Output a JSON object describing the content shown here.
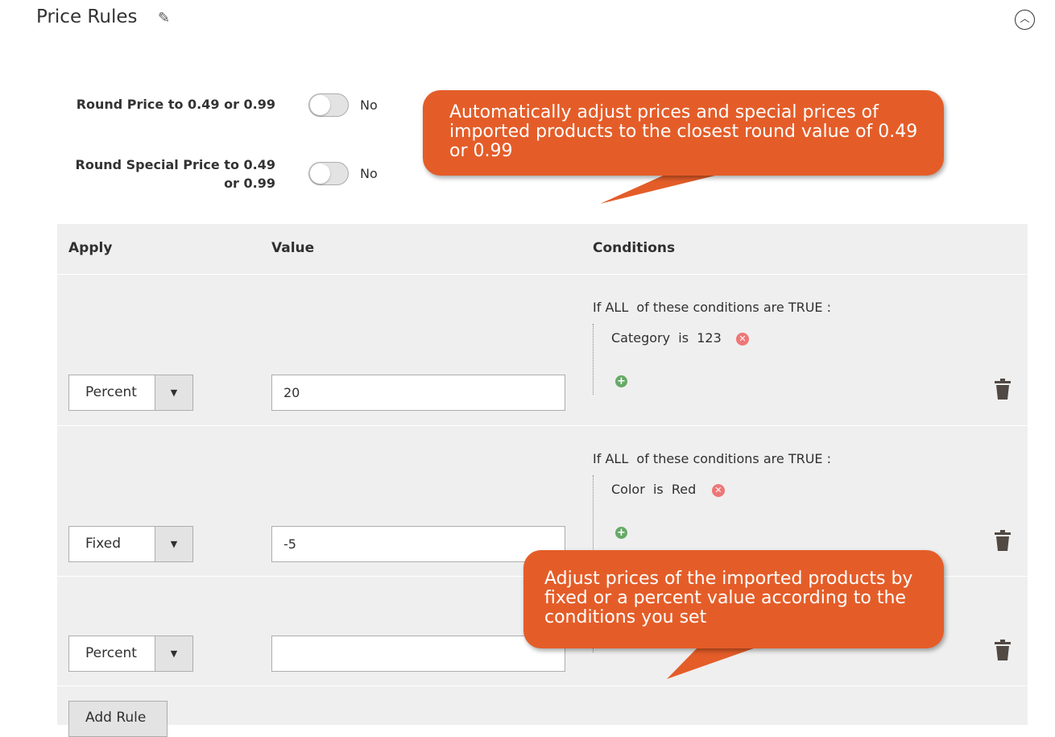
{
  "section": {
    "title": "Price Rules"
  },
  "settings": [
    {
      "label": "Round Price to 0.49 or 0.99",
      "value": "No"
    },
    {
      "label": "Round Special Price to 0.49 or 0.99",
      "value": "No"
    }
  ],
  "table": {
    "headers": {
      "apply": "Apply",
      "value": "Value",
      "conditions": "Conditions"
    },
    "rows": [
      {
        "apply": "Percent",
        "value": "20",
        "cond_prefix": "If",
        "cond_agg": "ALL",
        "cond_mid": "of these conditions are",
        "cond_val": "TRUE",
        "cond_suffix": ":",
        "attr": "Category",
        "op": "is",
        "val": "123"
      },
      {
        "apply": "Fixed",
        "value": "-5",
        "cond_prefix": "If",
        "cond_agg": "ALL",
        "cond_mid": "of these conditions are",
        "cond_val": "TRUE",
        "cond_suffix": ":",
        "attr": "Color",
        "op": "is",
        "val": "Red"
      },
      {
        "apply": "Percent",
        "value": ""
      }
    ],
    "add_rule": "Add Rule"
  },
  "callouts": [
    "Automatically adjust prices and special prices of imported products to the closest round value of 0.49 or 0.99",
    "Adjust prices of the imported products by fixed or a percent value according to the conditions you set"
  ],
  "colors": {
    "callout": "#e45d29",
    "table_bg": "#efefef"
  }
}
